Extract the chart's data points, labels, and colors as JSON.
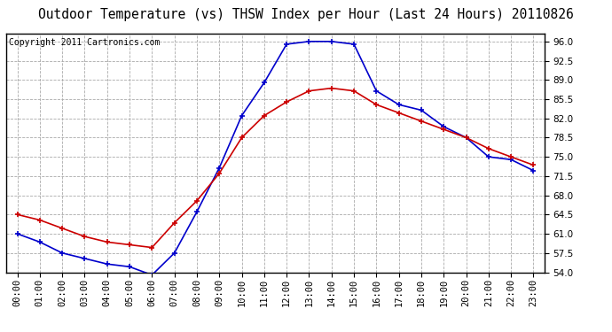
{
  "title": "Outdoor Temperature (vs) THSW Index per Hour (Last 24 Hours) 20110826",
  "copyright_text": "Copyright 2011 Cartronics.com",
  "hours": [
    0,
    1,
    2,
    3,
    4,
    5,
    6,
    7,
    8,
    9,
    10,
    11,
    12,
    13,
    14,
    15,
    16,
    17,
    18,
    19,
    20,
    21,
    22,
    23
  ],
  "temp_red": [
    64.5,
    63.5,
    62.0,
    60.5,
    59.5,
    59.0,
    58.5,
    63.0,
    67.0,
    72.0,
    78.5,
    82.5,
    85.0,
    87.0,
    87.5,
    87.0,
    84.5,
    83.0,
    81.5,
    80.0,
    78.5,
    76.5,
    75.0,
    73.5
  ],
  "thsw_blue": [
    61.0,
    59.5,
    57.5,
    56.5,
    55.5,
    55.0,
    53.5,
    57.5,
    65.0,
    73.0,
    82.5,
    88.5,
    95.5,
    96.0,
    96.0,
    95.5,
    87.0,
    84.5,
    83.5,
    80.5,
    78.5,
    75.0,
    74.5,
    72.5
  ],
  "ylim_min": 54.0,
  "ylim_max": 97.5,
  "yticks": [
    54.0,
    57.5,
    61.0,
    64.5,
    68.0,
    71.5,
    75.0,
    78.5,
    82.0,
    85.5,
    89.0,
    92.5,
    96.0
  ],
  "bg_color": "#ffffff",
  "plot_bg_color": "#ffffff",
  "grid_color": "#aaaaaa",
  "title_color": "#000000",
  "red_color": "#cc0000",
  "blue_color": "#0000cc",
  "title_fontsize": 10.5,
  "copyright_fontsize": 7,
  "tick_fontsize": 7.5
}
